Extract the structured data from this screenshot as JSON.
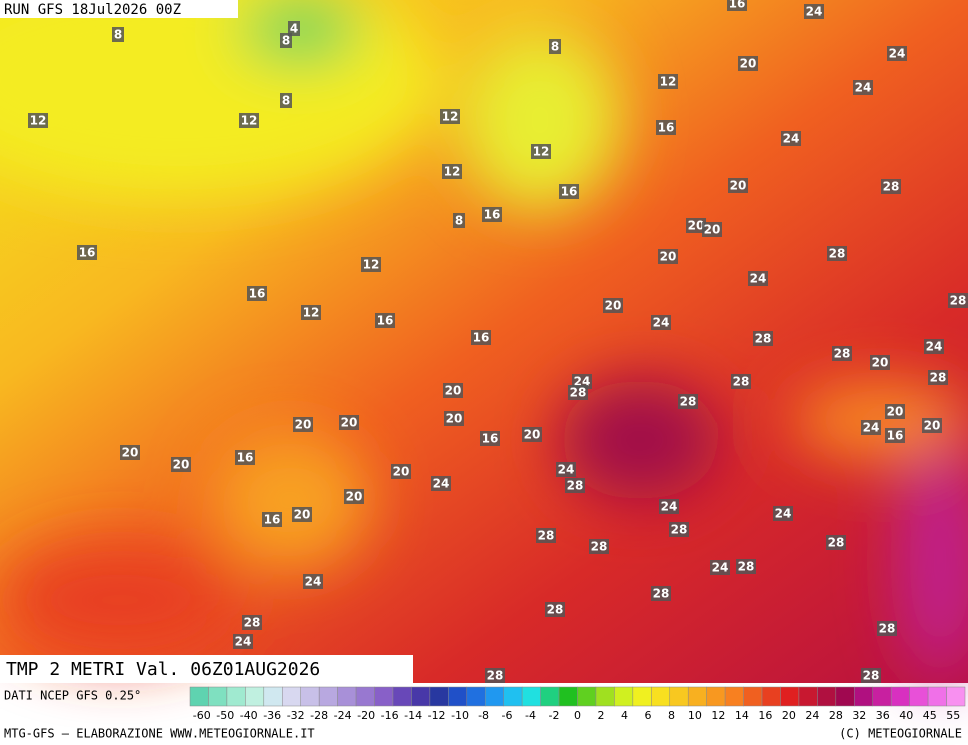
{
  "header": {
    "run": "RUN GFS 18Jul2026 00Z"
  },
  "map_labels": [
    4,
    8,
    8,
    8,
    8,
    12,
    12,
    12,
    12,
    12,
    12,
    8,
    16,
    16,
    16,
    16,
    12,
    16,
    12,
    16,
    16,
    20,
    24,
    24,
    24,
    24,
    20,
    28,
    20,
    20,
    20,
    28,
    24,
    20,
    24,
    28,
    28,
    28,
    20,
    24,
    28,
    24,
    28,
    28,
    20,
    28,
    20,
    20,
    24,
    16,
    20,
    20,
    20,
    16,
    20,
    20,
    20,
    16,
    24,
    28,
    20,
    24,
    20,
    24,
    16,
    20,
    24,
    28,
    28,
    28,
    28,
    24,
    28,
    24,
    28,
    28,
    28,
    28,
    24,
    28,
    28,
    16
  ],
  "footer": {
    "title": "TMP 2 METRI Val. 06Z01AUG2026",
    "source": "DATI NCEP GFS 0.25°",
    "credit": "MTG-GFS — ELABORAZIONE WWW.METEOGIORNALE.IT",
    "copyright": "(C) METEOGIORNALE"
  },
  "scale": {
    "labels": [
      -60,
      -50,
      -40,
      -36,
      -32,
      -28,
      -24,
      -20,
      -16,
      -14,
      -12,
      -10,
      -8,
      -6,
      -4,
      -2,
      0,
      2,
      4,
      6,
      8,
      10,
      12,
      14,
      16,
      20,
      24,
      28,
      32,
      36,
      40,
      45,
      55
    ],
    "colors": [
      "#5fd3b0",
      "#7fe0c0",
      "#a0ead0",
      "#c0f0e0",
      "#d0e8f0",
      "#d8d8f0",
      "#c8c0e8",
      "#b8a8e0",
      "#a890d8",
      "#9878d0",
      "#8860c8",
      "#6848b8",
      "#4838a8",
      "#2838a0",
      "#2050c8",
      "#2070e0",
      "#2098f0",
      "#20c0f0",
      "#20e0e0",
      "#20d080",
      "#20c020",
      "#60d020",
      "#a0e020",
      "#d0f020",
      "#f0f020",
      "#f8e020",
      "#f8c820",
      "#f8b020",
      "#f89820",
      "#f88020",
      "#f06020",
      "#e84020",
      "#e02020",
      "#c81830",
      "#b01040",
      "#a00850",
      "#b01080",
      "#c820a0",
      "#d830c0",
      "#e850d8",
      "#f070e8",
      "#f890f0"
    ]
  }
}
